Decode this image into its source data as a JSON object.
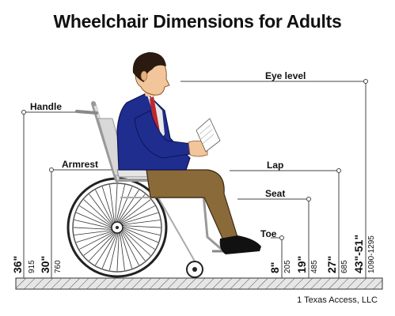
{
  "title": "Wheelchair Dimensions for Adults",
  "credit": "1 Texas Access, LLC",
  "labels": {
    "eye_level": "Eye level",
    "handle": "Handle",
    "armrest": "Armrest",
    "lap": "Lap",
    "seat": "Seat",
    "toe": "Toe"
  },
  "dimensions": {
    "handle": {
      "inches": "36\"",
      "mm": "915"
    },
    "armrest": {
      "inches": "30\"",
      "mm": "760"
    },
    "toe": {
      "inches": "8\"",
      "mm": "205"
    },
    "seat": {
      "inches": "19\"",
      "mm": "485"
    },
    "lap": {
      "inches": "27\"",
      "mm": "685"
    },
    "eye_level": {
      "inches": "43\"-51\"",
      "mm": "1090-1295"
    }
  },
  "colors": {
    "jacket": "#1f2d8f",
    "pants": "#8b6a3a",
    "shirt": "#e8e8e8",
    "tie": "#c0262b",
    "skin": "#f2c69a",
    "hair": "#2a1a10",
    "frame": "#c8c8c8",
    "floor": "#d9d9d9"
  }
}
